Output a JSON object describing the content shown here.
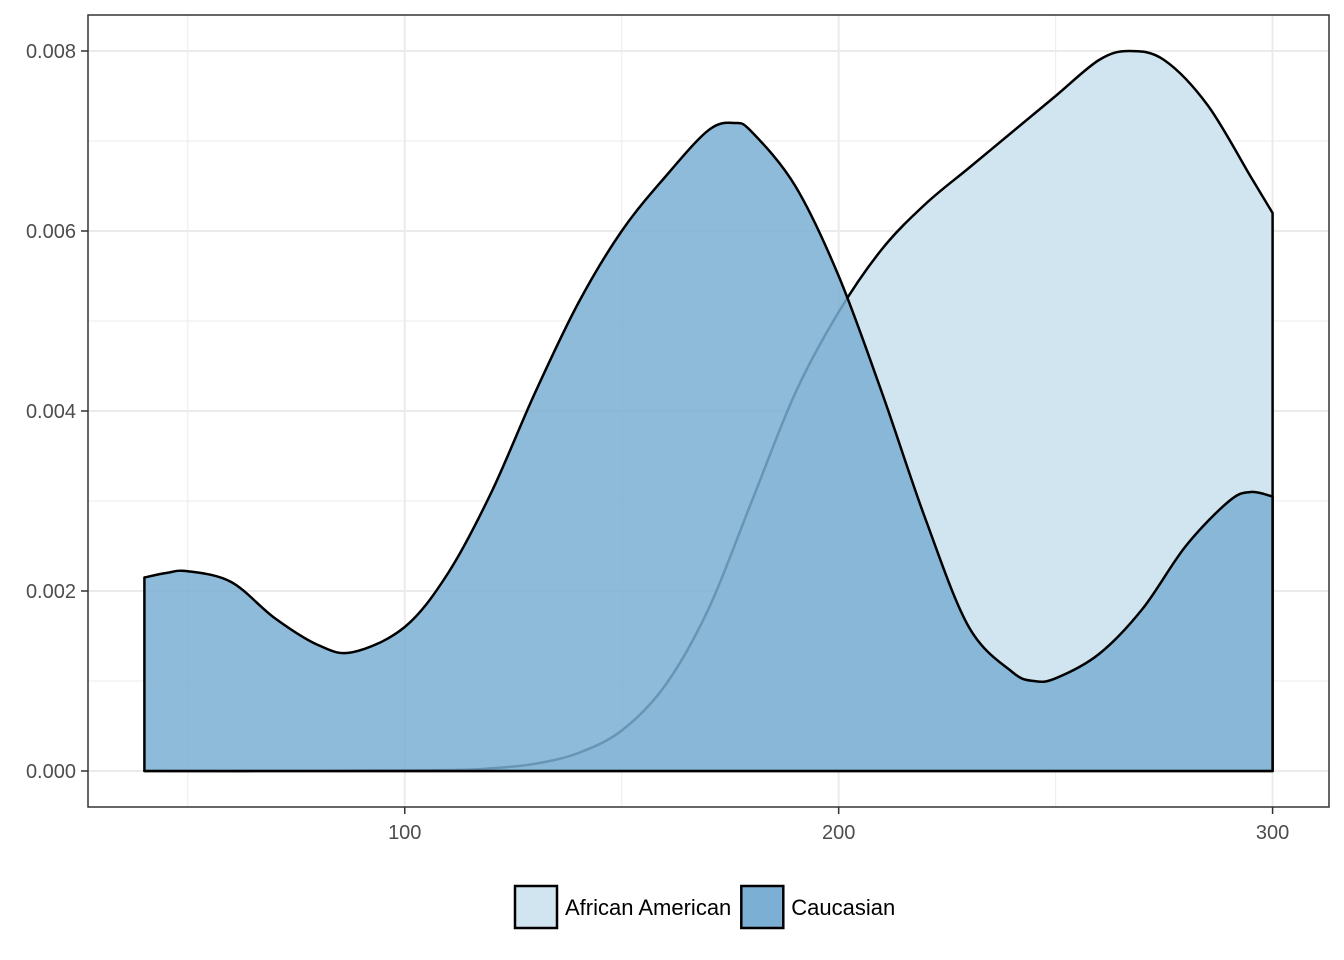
{
  "chart_data": {
    "type": "area",
    "title": "",
    "xlabel": "",
    "ylabel": "",
    "xlim": [
      27,
      313
    ],
    "ylim": [
      -0.0004,
      0.0084
    ],
    "x_ticks": [
      100,
      200,
      300
    ],
    "x_tick_labels": [
      "100",
      "200",
      "300"
    ],
    "y_ticks": [
      0,
      0.002,
      0.004,
      0.006,
      0.008
    ],
    "y_tick_labels": [
      "0.000",
      "0.002",
      "0.004",
      "0.006",
      "0.008"
    ],
    "grid": true,
    "legend_position": "bottom",
    "series": [
      {
        "name": "African American",
        "color": "#d1e5f0",
        "points": [
          [
            40,
            0
          ],
          [
            80,
            0
          ],
          [
            110,
            1e-05
          ],
          [
            120,
            3e-05
          ],
          [
            130,
            8e-05
          ],
          [
            140,
            0.0002
          ],
          [
            150,
            0.00045
          ],
          [
            160,
            0.00095
          ],
          [
            170,
            0.0018
          ],
          [
            180,
            0.003
          ],
          [
            190,
            0.0042
          ],
          [
            200,
            0.0051
          ],
          [
            210,
            0.0058
          ],
          [
            220,
            0.0063
          ],
          [
            230,
            0.0067
          ],
          [
            240,
            0.0071
          ],
          [
            250,
            0.0075
          ],
          [
            260,
            0.0079
          ],
          [
            267,
            0.008
          ],
          [
            275,
            0.0079
          ],
          [
            285,
            0.0074
          ],
          [
            295,
            0.0066
          ],
          [
            300,
            0.0062
          ]
        ]
      },
      {
        "name": "Caucasian",
        "color": "#7bafd4",
        "points": [
          [
            40,
            0.00215
          ],
          [
            45,
            0.0022
          ],
          [
            50,
            0.00222
          ],
          [
            60,
            0.0021
          ],
          [
            70,
            0.0017
          ],
          [
            80,
            0.0014
          ],
          [
            88,
            0.00132
          ],
          [
            100,
            0.0016
          ],
          [
            110,
            0.0022
          ],
          [
            120,
            0.0031
          ],
          [
            130,
            0.0042
          ],
          [
            140,
            0.0052
          ],
          [
            150,
            0.006
          ],
          [
            160,
            0.0066
          ],
          [
            170,
            0.00712
          ],
          [
            176,
            0.0072
          ],
          [
            180,
            0.0071
          ],
          [
            190,
            0.0065
          ],
          [
            200,
            0.0055
          ],
          [
            210,
            0.0042
          ],
          [
            220,
            0.0028
          ],
          [
            230,
            0.0016
          ],
          [
            240,
            0.0011
          ],
          [
            245,
            0.001
          ],
          [
            250,
            0.00103
          ],
          [
            260,
            0.0013
          ],
          [
            270,
            0.0018
          ],
          [
            280,
            0.0025
          ],
          [
            290,
            0.003
          ],
          [
            295,
            0.0031
          ],
          [
            300,
            0.00305
          ]
        ]
      }
    ]
  }
}
